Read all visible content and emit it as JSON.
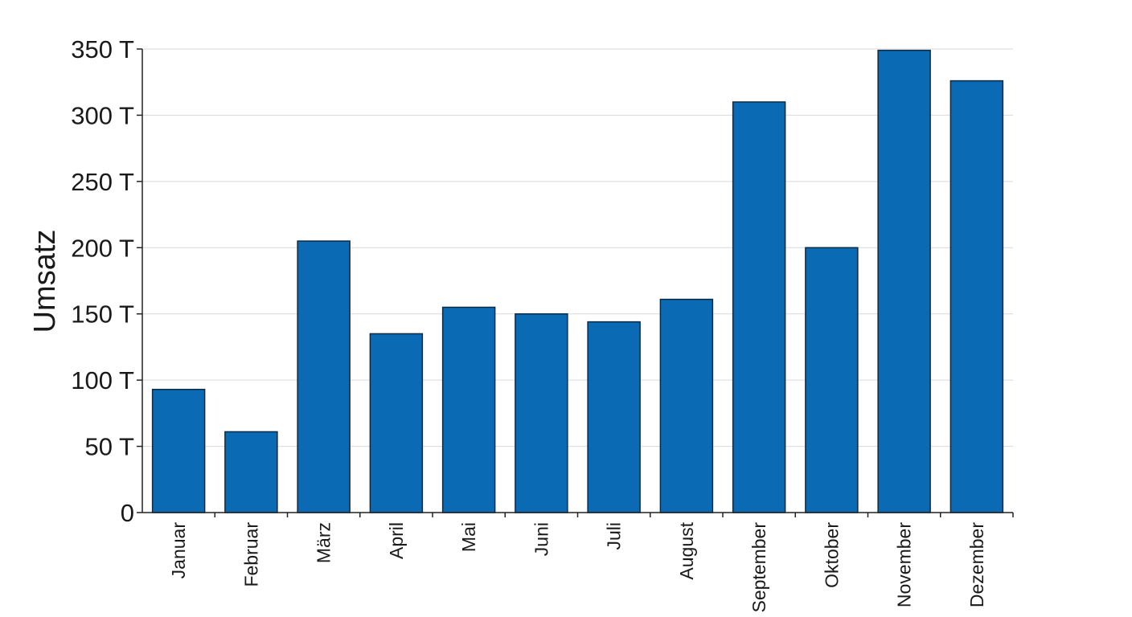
{
  "chart_data": {
    "type": "bar",
    "title": "",
    "xlabel": "",
    "ylabel": "Umsatz",
    "categories": [
      "Januar",
      "Februar",
      "März",
      "April",
      "Mai",
      "Juni",
      "Juli",
      "August",
      "September",
      "Oktober",
      "November",
      "Dezember"
    ],
    "values": [
      93000,
      61000,
      205000,
      135000,
      155000,
      150000,
      144000,
      161000,
      310000,
      200000,
      349000,
      326000
    ],
    "ylim": [
      0,
      350000
    ],
    "yticks": [
      0,
      50000,
      100000,
      150000,
      200000,
      250000,
      300000,
      350000
    ],
    "ytick_labels": [
      "0",
      "50 T",
      "100 T",
      "150 T",
      "200 T",
      "250 T",
      "300 T",
      "350 T"
    ],
    "grid": "horizontal",
    "legend": "none",
    "colors": {
      "bar": "#0a6ab3",
      "bar_edge": "#0d2a45",
      "grid": "#d9d9d9",
      "axis": "#222222"
    }
  }
}
